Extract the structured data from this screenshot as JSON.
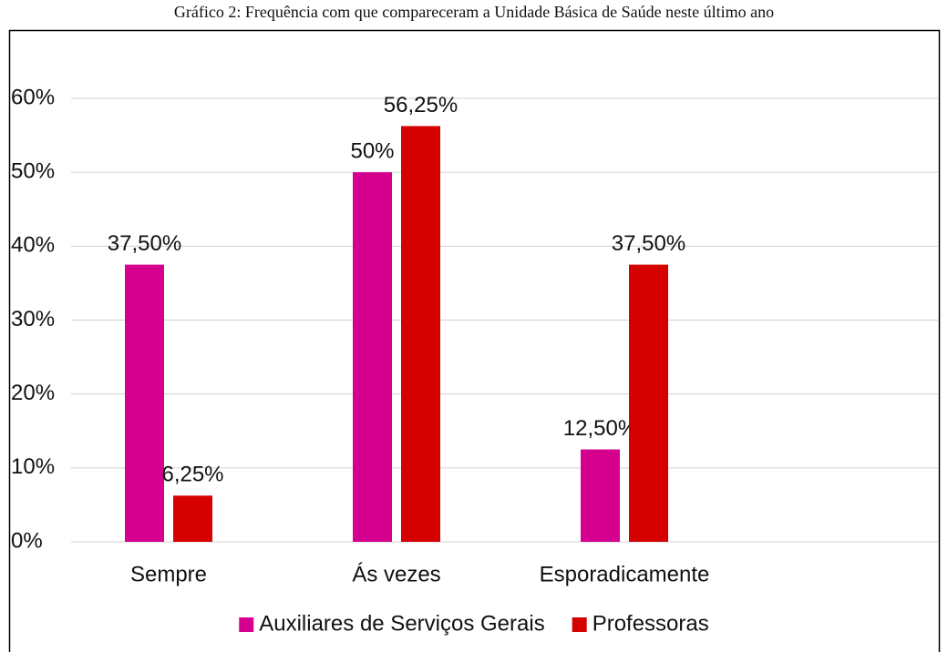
{
  "chart_data": {
    "type": "bar",
    "title": "Gráfico 2: Frequência com que compareceram a Unidade Básica de Saúde neste último ano",
    "categories": [
      "Sempre",
      "Ás vezes",
      "Esporadicamente"
    ],
    "series": [
      {
        "name": "Auxiliares de Serviços Gerais",
        "color": "#d6008f",
        "values": [
          37.5,
          50,
          12.5
        ],
        "value_labels": [
          "37,50%",
          "50%",
          "12,50%"
        ]
      },
      {
        "name": "Professoras",
        "color": "#d50000",
        "values": [
          6.25,
          56.25,
          37.5
        ],
        "value_labels": [
          "6,25%",
          "56,25%",
          "37,50%"
        ]
      }
    ],
    "ylim": [
      0,
      60
    ],
    "yticks": [
      {
        "value": 0,
        "label": "0%"
      },
      {
        "value": 10,
        "label": "10%"
      },
      {
        "value": 20,
        "label": "20%"
      },
      {
        "value": 30,
        "label": "30%"
      },
      {
        "value": 40,
        "label": "40%"
      },
      {
        "value": 50,
        "label": "50%"
      },
      {
        "value": 60,
        "label": "60%"
      }
    ],
    "grid": true,
    "legend": "bottom"
  }
}
